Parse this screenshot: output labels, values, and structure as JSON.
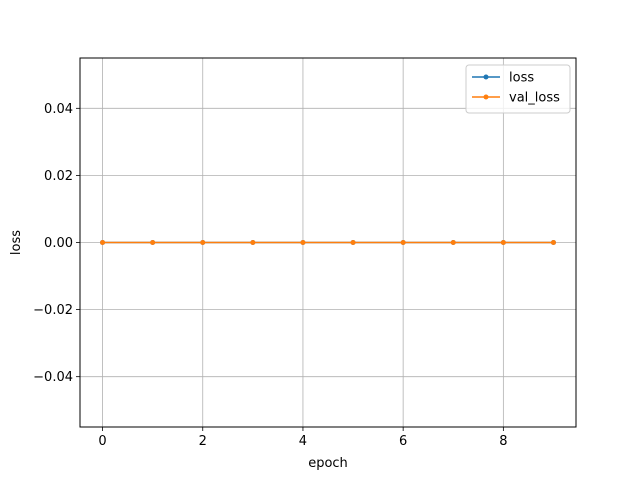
{
  "chart_data": {
    "type": "line",
    "title": "",
    "xlabel": "epoch",
    "ylabel": "loss",
    "xlim": [
      -0.45,
      9.45
    ],
    "ylim": [
      -0.055,
      0.055
    ],
    "x_ticks": [
      0,
      2,
      4,
      6,
      8
    ],
    "x_tick_labels": [
      "0",
      "2",
      "4",
      "6",
      "8"
    ],
    "y_ticks": [
      -0.04,
      -0.02,
      0.0,
      0.02,
      0.04
    ],
    "y_tick_labels": [
      "−0.04",
      "−0.02",
      "0.00",
      "0.02",
      "0.04"
    ],
    "grid": true,
    "legend_position": "top-right",
    "x": [
      0,
      1,
      2,
      3,
      4,
      5,
      6,
      7,
      8,
      9
    ],
    "series": [
      {
        "name": "loss",
        "color": "#1f77b4",
        "marker": "circle",
        "values": [
          0,
          0,
          0,
          0,
          0,
          0,
          0,
          0,
          0,
          0
        ]
      },
      {
        "name": "val_loss",
        "color": "#ff7f0e",
        "marker": "circle",
        "values": [
          0,
          0,
          0,
          0,
          0,
          0,
          0,
          0,
          0,
          0
        ]
      }
    ]
  }
}
